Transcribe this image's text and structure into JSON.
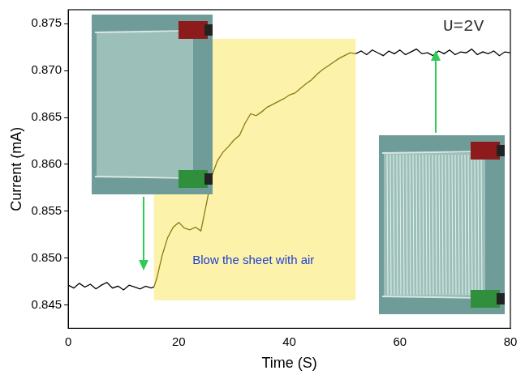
{
  "chart_data": {
    "type": "line",
    "x_label": "Time (S)",
    "y_label": "Current (mA)",
    "xlim": [
      0,
      80
    ],
    "xticks": [
      0,
      20,
      40,
      60,
      80
    ],
    "ylim": [
      0.8425,
      0.8765
    ],
    "yticks": [
      0.845,
      {
        "value": 0.85,
        "label": "0.850"
      },
      0.855,
      {
        "value": 0.86,
        "label": "0.860"
      },
      0.865,
      {
        "value": 0.87,
        "label": "0.870"
      },
      0.875
    ],
    "grid": false,
    "series": [
      {
        "color": "#000000",
        "x": [
          0,
          1,
          2,
          3,
          4,
          5,
          6,
          7,
          8,
          9,
          10,
          11,
          12,
          13,
          14,
          15,
          15.5
        ],
        "values": [
          0.8471,
          0.8468,
          0.8473,
          0.8469,
          0.8472,
          0.8467,
          0.8471,
          0.8474,
          0.8468,
          0.847,
          0.8466,
          0.8471,
          0.8469,
          0.8467,
          0.847,
          0.8468,
          0.8469
        ]
      },
      {
        "color": "#8c7a14",
        "x": [
          15.5,
          16,
          17,
          18,
          19,
          20,
          21,
          22,
          23,
          24,
          25,
          26,
          27,
          28,
          29,
          30,
          31,
          32,
          33,
          34,
          35,
          36,
          37,
          38,
          39,
          40,
          41,
          42,
          43,
          44,
          45,
          46,
          47,
          48,
          49,
          50,
          51,
          52
        ],
        "values": [
          0.8469,
          0.8478,
          0.8503,
          0.8522,
          0.8533,
          0.8538,
          0.8532,
          0.853,
          0.8533,
          0.8529,
          0.8558,
          0.8588,
          0.8604,
          0.8613,
          0.8619,
          0.8626,
          0.8631,
          0.8644,
          0.8654,
          0.8652,
          0.8656,
          0.8661,
          0.8664,
          0.8667,
          0.867,
          0.8674,
          0.8676,
          0.8681,
          0.8686,
          0.869,
          0.8696,
          0.8701,
          0.8705,
          0.8709,
          0.8713,
          0.8716,
          0.8719,
          0.8718
        ]
      },
      {
        "color": "#000000",
        "x": [
          52,
          53,
          54,
          55,
          56,
          57,
          58,
          59,
          60,
          61,
          62,
          63,
          64,
          65,
          66,
          67,
          68,
          69,
          70,
          71,
          72,
          73,
          74,
          75,
          76,
          77,
          78,
          79,
          80
        ],
        "values": [
          0.8718,
          0.8721,
          0.8717,
          0.8722,
          0.8719,
          0.8716,
          0.8721,
          0.8718,
          0.8722,
          0.8717,
          0.872,
          0.8723,
          0.8718,
          0.8719,
          0.8716,
          0.8721,
          0.8718,
          0.8722,
          0.8717,
          0.872,
          0.8719,
          0.8723,
          0.8717,
          0.872,
          0.8718,
          0.8721,
          0.8716,
          0.872,
          0.8719
        ]
      }
    ],
    "shaded_region": {
      "x": [
        15.5,
        52
      ],
      "y": [
        0.8455,
        0.8734
      ],
      "color": "#fcf2aa"
    },
    "annotations": [
      {
        "text": "Blow the sheet with air",
        "x": 33.5,
        "y": 0.8497,
        "color": "#1f3fd0"
      },
      {
        "text": "U=2V",
        "x": 71.5,
        "y": 0.8747,
        "color": "#333333"
      }
    ]
  }
}
